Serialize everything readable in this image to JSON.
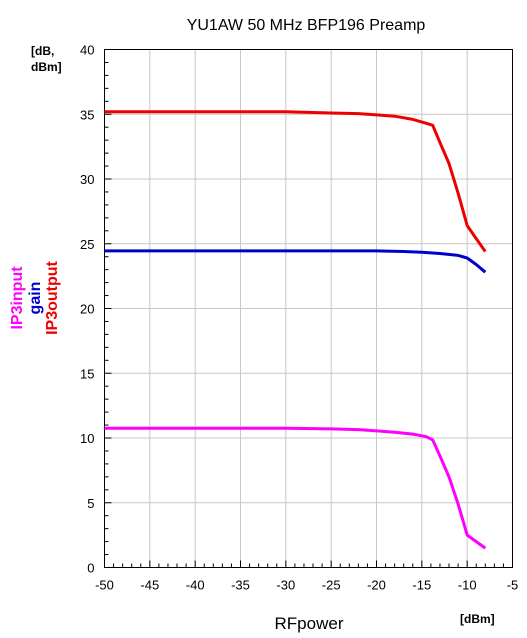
{
  "chart_data": {
    "type": "line",
    "title": "YU1AW 50 MHz BFP196 Preamp",
    "xlabel": "RFpower",
    "x_unit": "[dBm]",
    "y_unit_line1": "[dB,",
    "y_unit_line2": "dBm]",
    "xlim": [
      -50,
      -5
    ],
    "ylim": [
      0,
      40
    ],
    "x_ticks": [
      -50,
      -45,
      -40,
      -35,
      -30,
      -25,
      -20,
      -15,
      -10,
      -5
    ],
    "y_ticks": [
      0,
      5,
      10,
      15,
      20,
      25,
      30,
      35,
      40
    ],
    "grid": true,
    "series": [
      {
        "name": "IP3input",
        "color": "#ff00ff",
        "points": [
          [
            -50,
            10.75
          ],
          [
            -40,
            10.75
          ],
          [
            -30,
            10.75
          ],
          [
            -25,
            10.7
          ],
          [
            -22,
            10.65
          ],
          [
            -20,
            10.55
          ],
          [
            -18,
            10.45
          ],
          [
            -16,
            10.3
          ],
          [
            -14.5,
            10.1
          ],
          [
            -13.8,
            9.85
          ],
          [
            -13,
            8.6
          ],
          [
            -12,
            7.0
          ],
          [
            -11,
            4.9
          ],
          [
            -10,
            2.5
          ],
          [
            -9,
            2.0
          ],
          [
            -8,
            1.5
          ]
        ]
      },
      {
        "name": "gain",
        "color": "#0000cc",
        "points": [
          [
            -50,
            24.45
          ],
          [
            -40,
            24.45
          ],
          [
            -30,
            24.45
          ],
          [
            -20,
            24.45
          ],
          [
            -17,
            24.4
          ],
          [
            -15,
            24.35
          ],
          [
            -13,
            24.25
          ],
          [
            -11,
            24.1
          ],
          [
            -10,
            23.9
          ],
          [
            -9,
            23.4
          ],
          [
            -8,
            22.8
          ]
        ]
      },
      {
        "name": "IP3output",
        "color": "#ee0000",
        "points": [
          [
            -50,
            35.2
          ],
          [
            -40,
            35.2
          ],
          [
            -30,
            35.2
          ],
          [
            -25,
            35.1
          ],
          [
            -22,
            35.05
          ],
          [
            -20,
            34.95
          ],
          [
            -18,
            34.85
          ],
          [
            -16,
            34.6
          ],
          [
            -14.5,
            34.3
          ],
          [
            -13.8,
            34.15
          ],
          [
            -13,
            32.8
          ],
          [
            -12,
            31.2
          ],
          [
            -11,
            28.9
          ],
          [
            -10,
            26.4
          ],
          [
            -9,
            25.4
          ],
          [
            -8,
            24.4
          ]
        ]
      }
    ]
  }
}
